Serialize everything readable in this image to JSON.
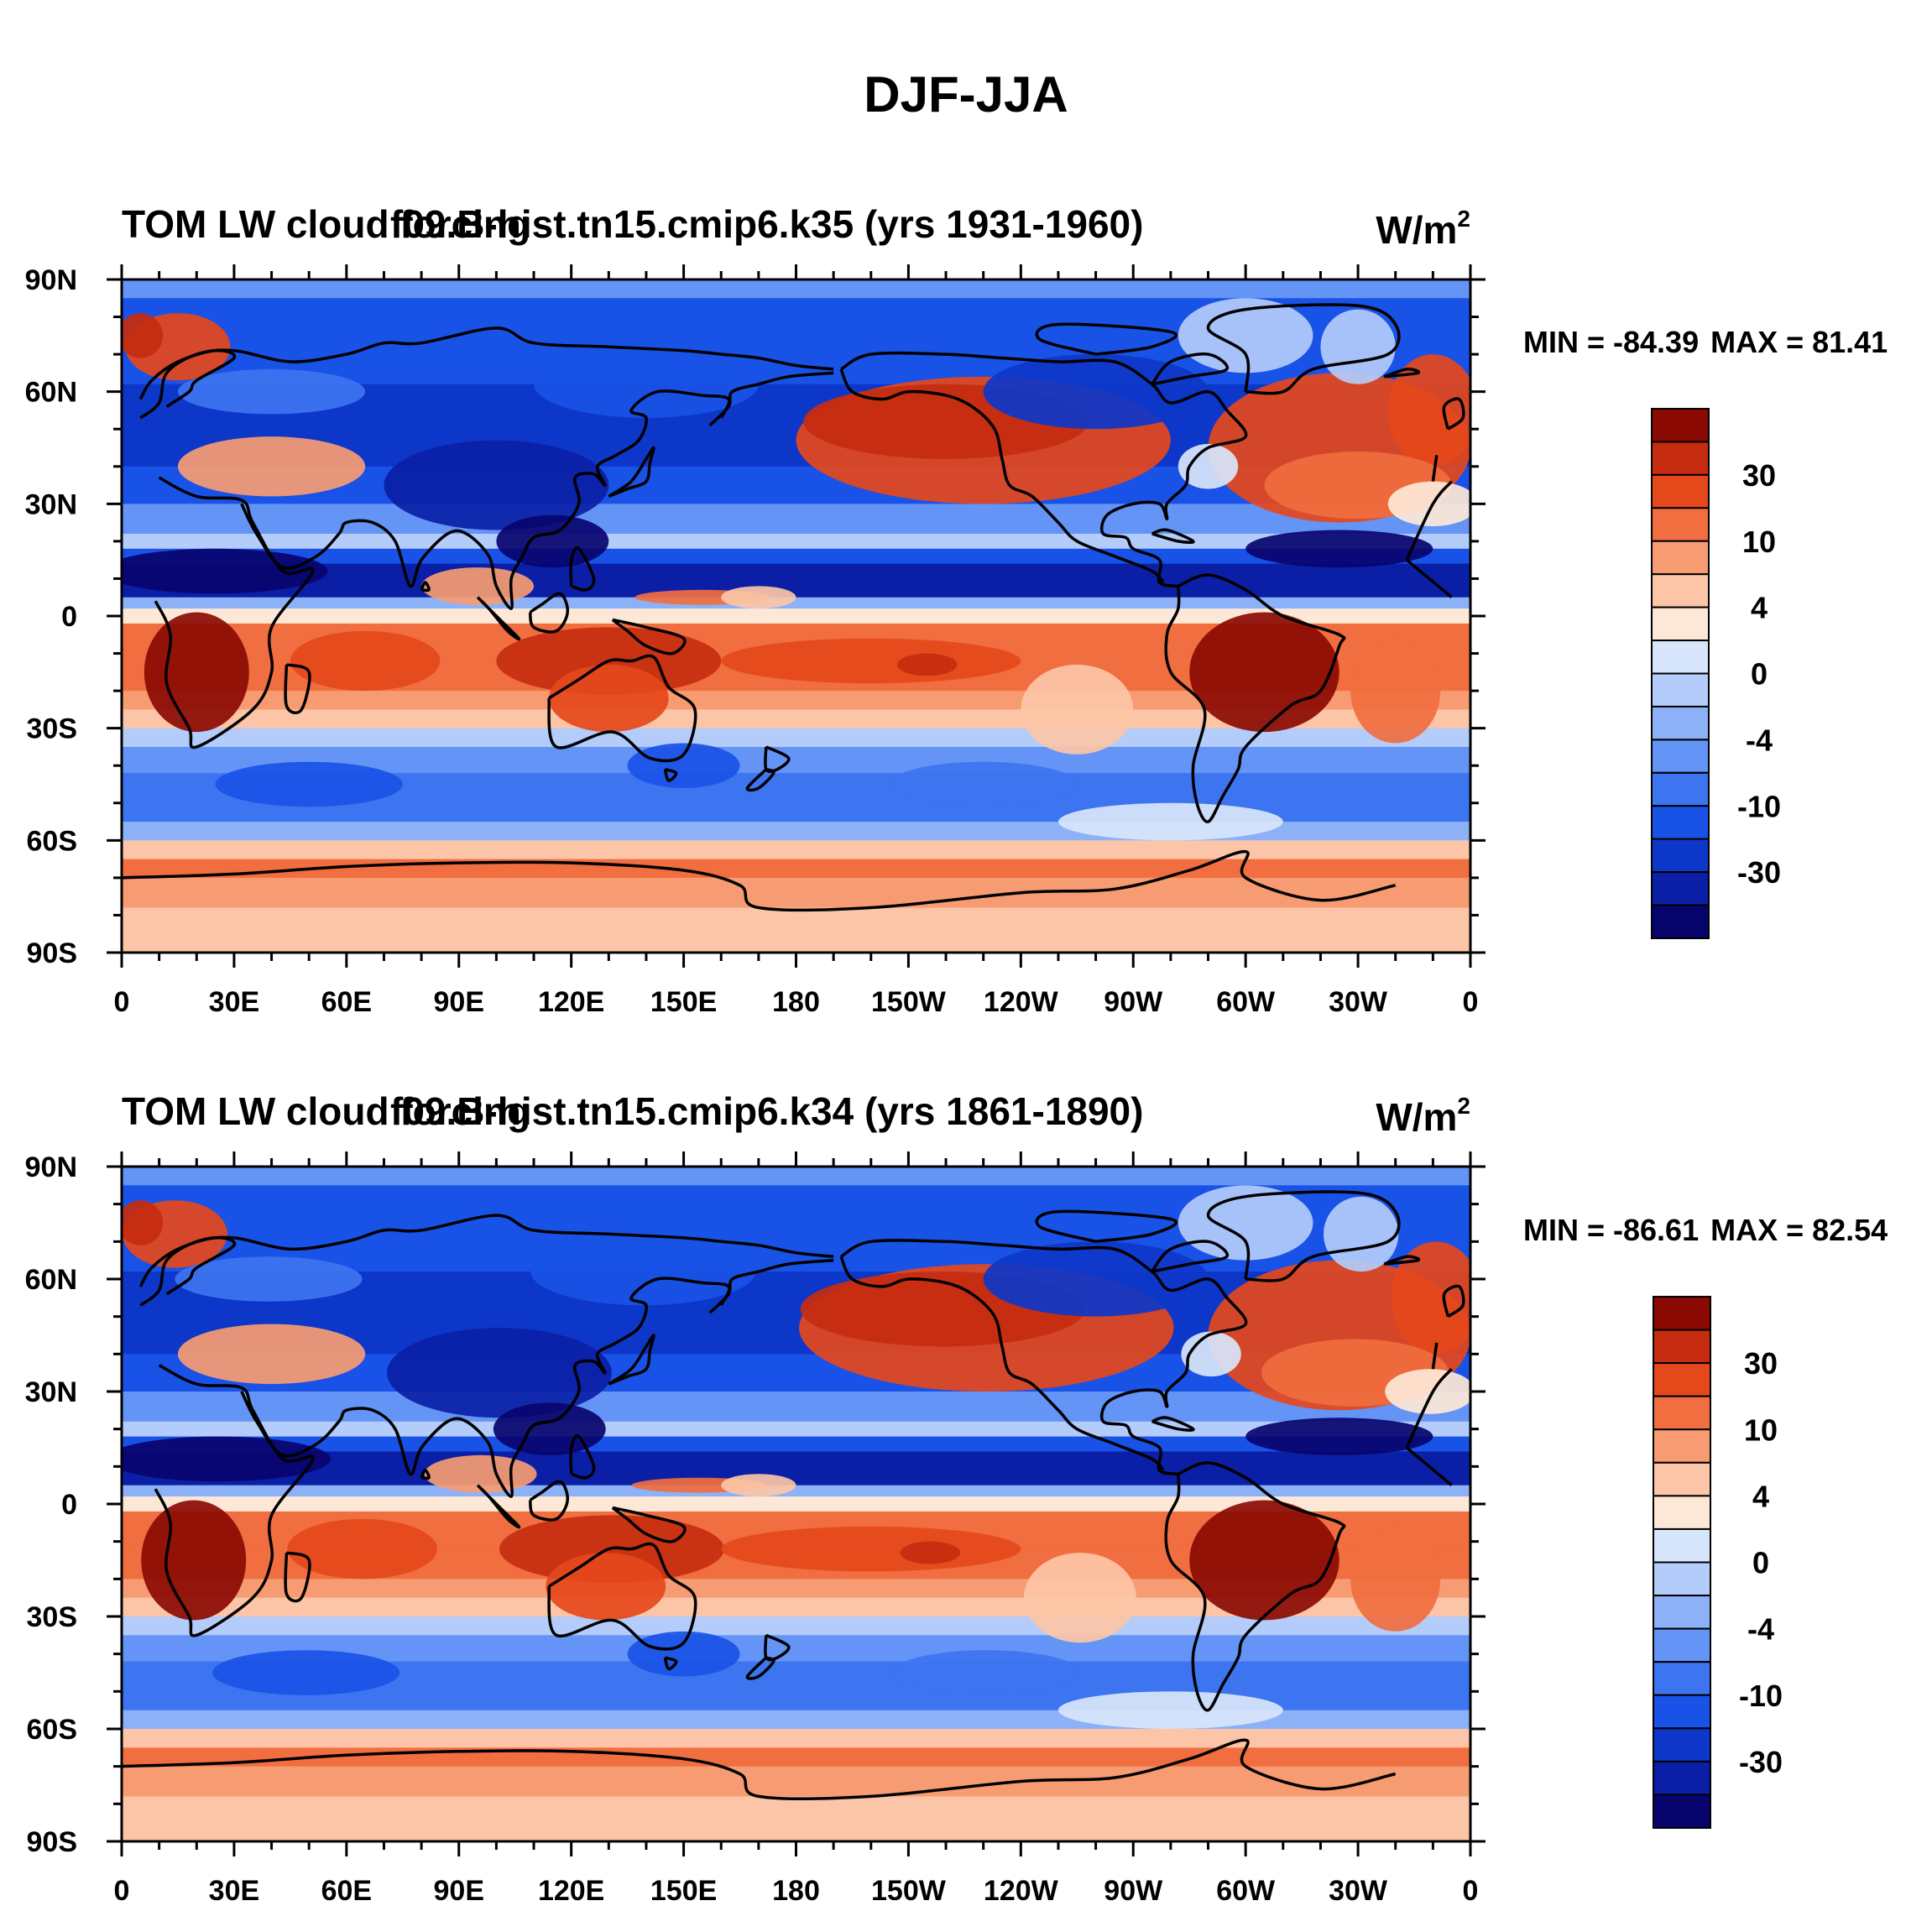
{
  "title": "DJF-JJA",
  "colors": {
    "palette": [
      "#08046e",
      "#0a1fa6",
      "#0d37c9",
      "#1952e6",
      "#3d74f0",
      "#6494f5",
      "#8cb1f7",
      "#b3ccfa",
      "#d8e6fb",
      "#fde8d7",
      "#fcc5a7",
      "#f79c72",
      "#f06e3f",
      "#e5481b",
      "#c62c0f",
      "#8b0a03"
    ],
    "land_outline": "#000000"
  },
  "chart_data": [
    {
      "type": "contour-map",
      "left_title": "TOM LW cloud forcing",
      "center_title": "f09.B-hist.tn15.cmip6.k35 (yrs 1931-1960)",
      "units": "W/m",
      "units_sup": "2",
      "min_label": "MIN = -84.39",
      "max_label": "MAX =  81.41",
      "min": -84.39,
      "max": 81.41,
      "x_ticks": [
        "0",
        "30E",
        "60E",
        "90E",
        "120E",
        "150E",
        "180",
        "150W",
        "120W",
        "90W",
        "60W",
        "30W",
        "0"
      ],
      "y_ticks": [
        "90N",
        "60N",
        "30N",
        "0",
        "30S",
        "60S",
        "90S"
      ],
      "colorbar_labels": [
        "30",
        "10",
        "4",
        "0",
        "-4",
        "-10",
        "-30"
      ],
      "levels": [
        -50,
        -40,
        -30,
        -20,
        -10,
        -6,
        -4,
        -2,
        0,
        2,
        4,
        6,
        10,
        20,
        30,
        40
      ]
    },
    {
      "type": "contour-map",
      "left_title": "TOM LW cloud forcing",
      "center_title": "f09.B-hist.tn15.cmip6.k34 (yrs 1861-1890)",
      "units": "W/m",
      "units_sup": "2",
      "min_label": "MIN = -86.61",
      "max_label": "MAX =  82.54",
      "min": -86.61,
      "max": 82.54,
      "x_ticks": [
        "0",
        "30E",
        "60E",
        "90E",
        "120E",
        "150E",
        "180",
        "150W",
        "120W",
        "90W",
        "60W",
        "30W",
        "0"
      ],
      "y_ticks": [
        "90N",
        "60N",
        "30N",
        "0",
        "30S",
        "60S",
        "90S"
      ],
      "colorbar_labels": [
        "30",
        "10",
        "4",
        "0",
        "-4",
        "-10",
        "-30"
      ],
      "levels": [
        -50,
        -40,
        -30,
        -20,
        -10,
        -6,
        -4,
        -2,
        0,
        2,
        4,
        6,
        10,
        20,
        30,
        40
      ]
    }
  ]
}
